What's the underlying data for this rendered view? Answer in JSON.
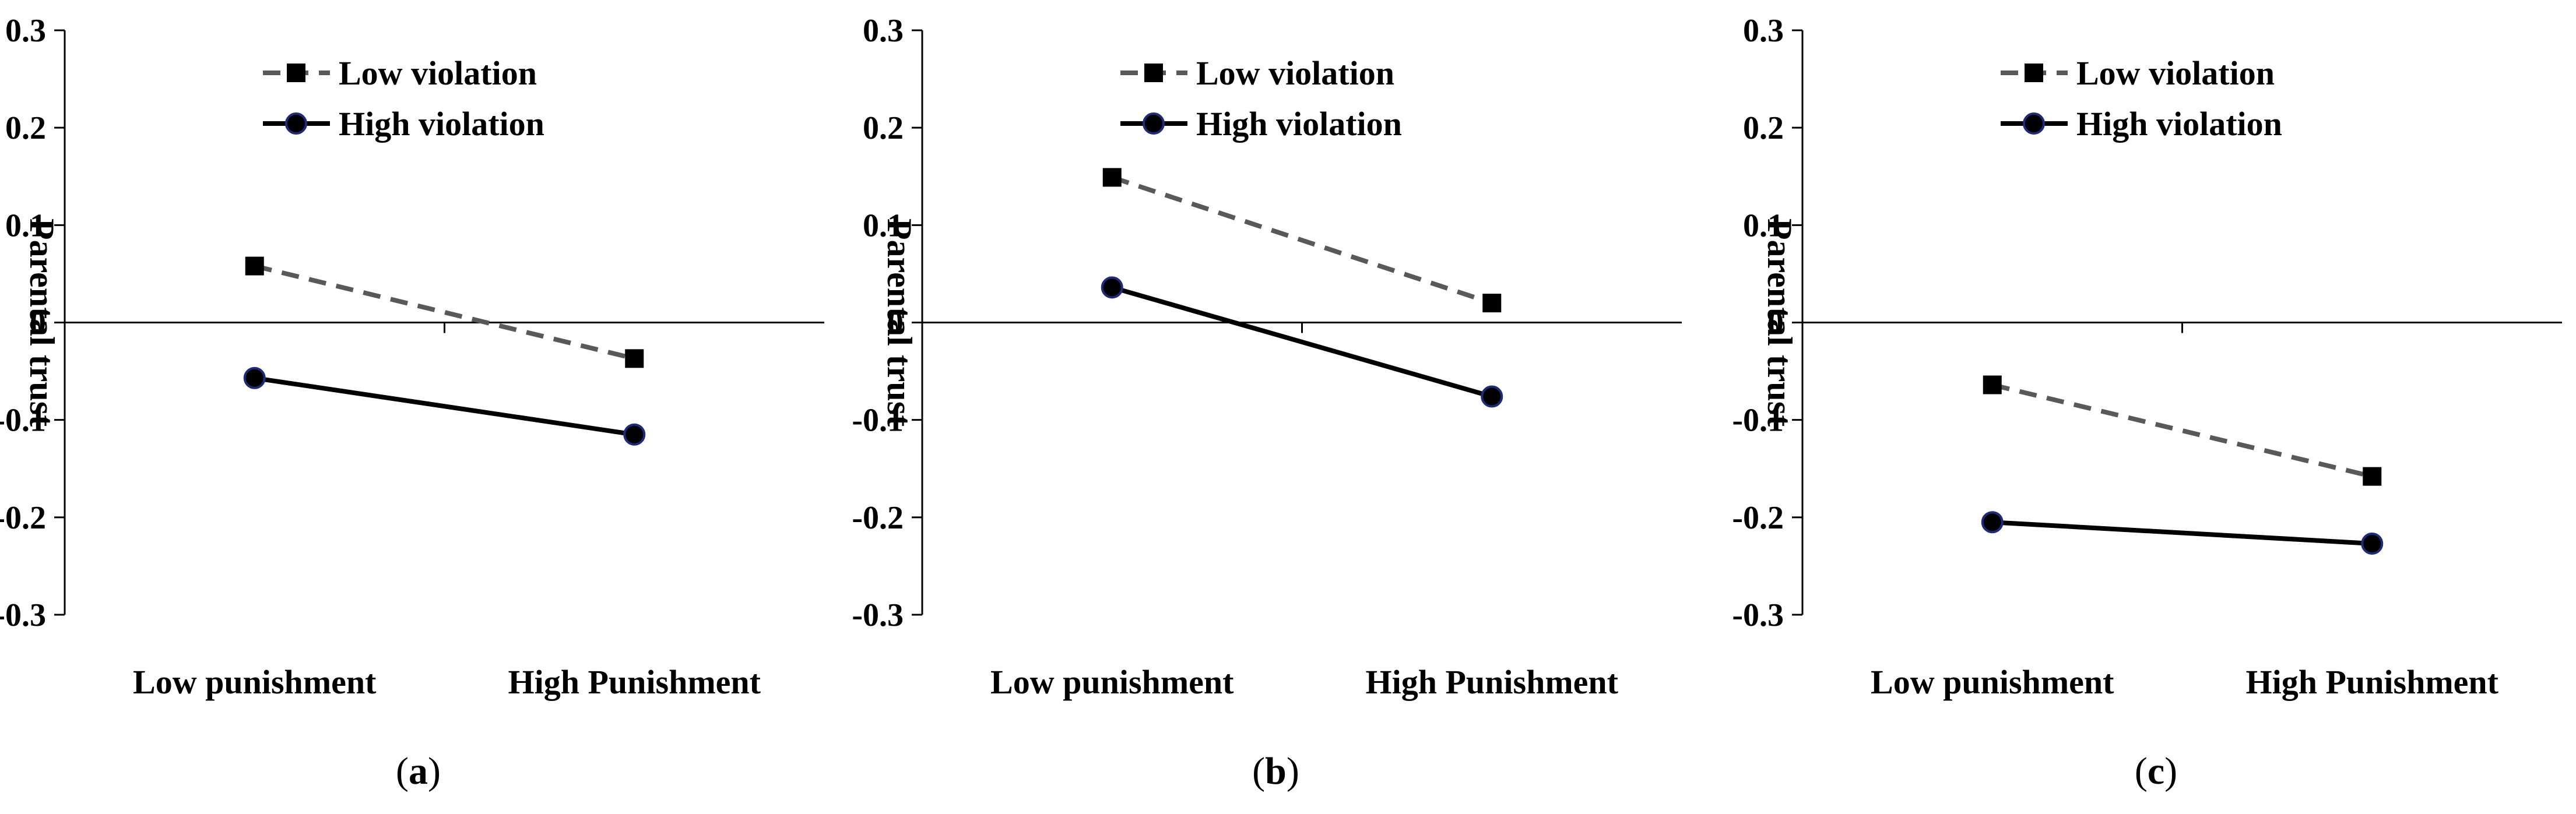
{
  "colors": {
    "low_violation": "#595959",
    "high_violation": "#000000",
    "marker_low": "#000000",
    "marker_high_fill": "#000000",
    "marker_high_stroke": "#1f2a7a",
    "axis": "#000000"
  },
  "chart_data": [
    {
      "type": "line",
      "panel_label": "a",
      "title": "",
      "ylabel": "Parental trust",
      "xlabel": "",
      "categories": [
        "Low punishment",
        "High Punishment"
      ],
      "ylim": [
        -0.3,
        0.3
      ],
      "yticks": [
        "0.3",
        "0.2",
        "0.1",
        "0",
        "-0.1",
        "-0.2",
        "-0.3"
      ],
      "legend": {
        "position": "top-right",
        "entries": [
          "Low violation",
          "High violation"
        ]
      },
      "series": [
        {
          "name": "Low violation",
          "style": "dashed-square",
          "values": [
            0.058,
            -0.037
          ]
        },
        {
          "name": "High violation",
          "style": "solid-circle",
          "values": [
            -0.057,
            -0.115
          ]
        }
      ]
    },
    {
      "type": "line",
      "panel_label": "b",
      "title": "",
      "ylabel": "Parental trust",
      "xlabel": "",
      "categories": [
        "Low punishment",
        "High Punishment"
      ],
      "ylim": [
        -0.3,
        0.3
      ],
      "yticks": [
        "0.3",
        "0.2",
        "0.1",
        "0",
        "-0.1",
        "-0.2",
        "-0.3"
      ],
      "legend": {
        "position": "top-right",
        "entries": [
          "Low violation",
          "High violation"
        ]
      },
      "series": [
        {
          "name": "Low violation",
          "style": "dashed-square",
          "values": [
            0.149,
            0.02
          ]
        },
        {
          "name": "High violation",
          "style": "solid-circle",
          "values": [
            0.036,
            -0.076
          ]
        }
      ]
    },
    {
      "type": "line",
      "panel_label": "c",
      "title": "",
      "ylabel": "Parental trust",
      "xlabel": "",
      "categories": [
        "Low punishment",
        "High Punishment"
      ],
      "ylim": [
        -0.3,
        0.3
      ],
      "yticks": [
        "0.3",
        "0.2",
        "0.1",
        "0",
        "-0.1",
        "-0.2",
        "-0.3"
      ],
      "legend": {
        "position": "top-right",
        "entries": [
          "Low violation",
          "High violation"
        ]
      },
      "series": [
        {
          "name": "Low violation",
          "style": "dashed-square",
          "values": [
            -0.064,
            -0.158
          ]
        },
        {
          "name": "High violation",
          "style": "solid-circle",
          "values": [
            -0.205,
            -0.227
          ]
        }
      ]
    }
  ]
}
